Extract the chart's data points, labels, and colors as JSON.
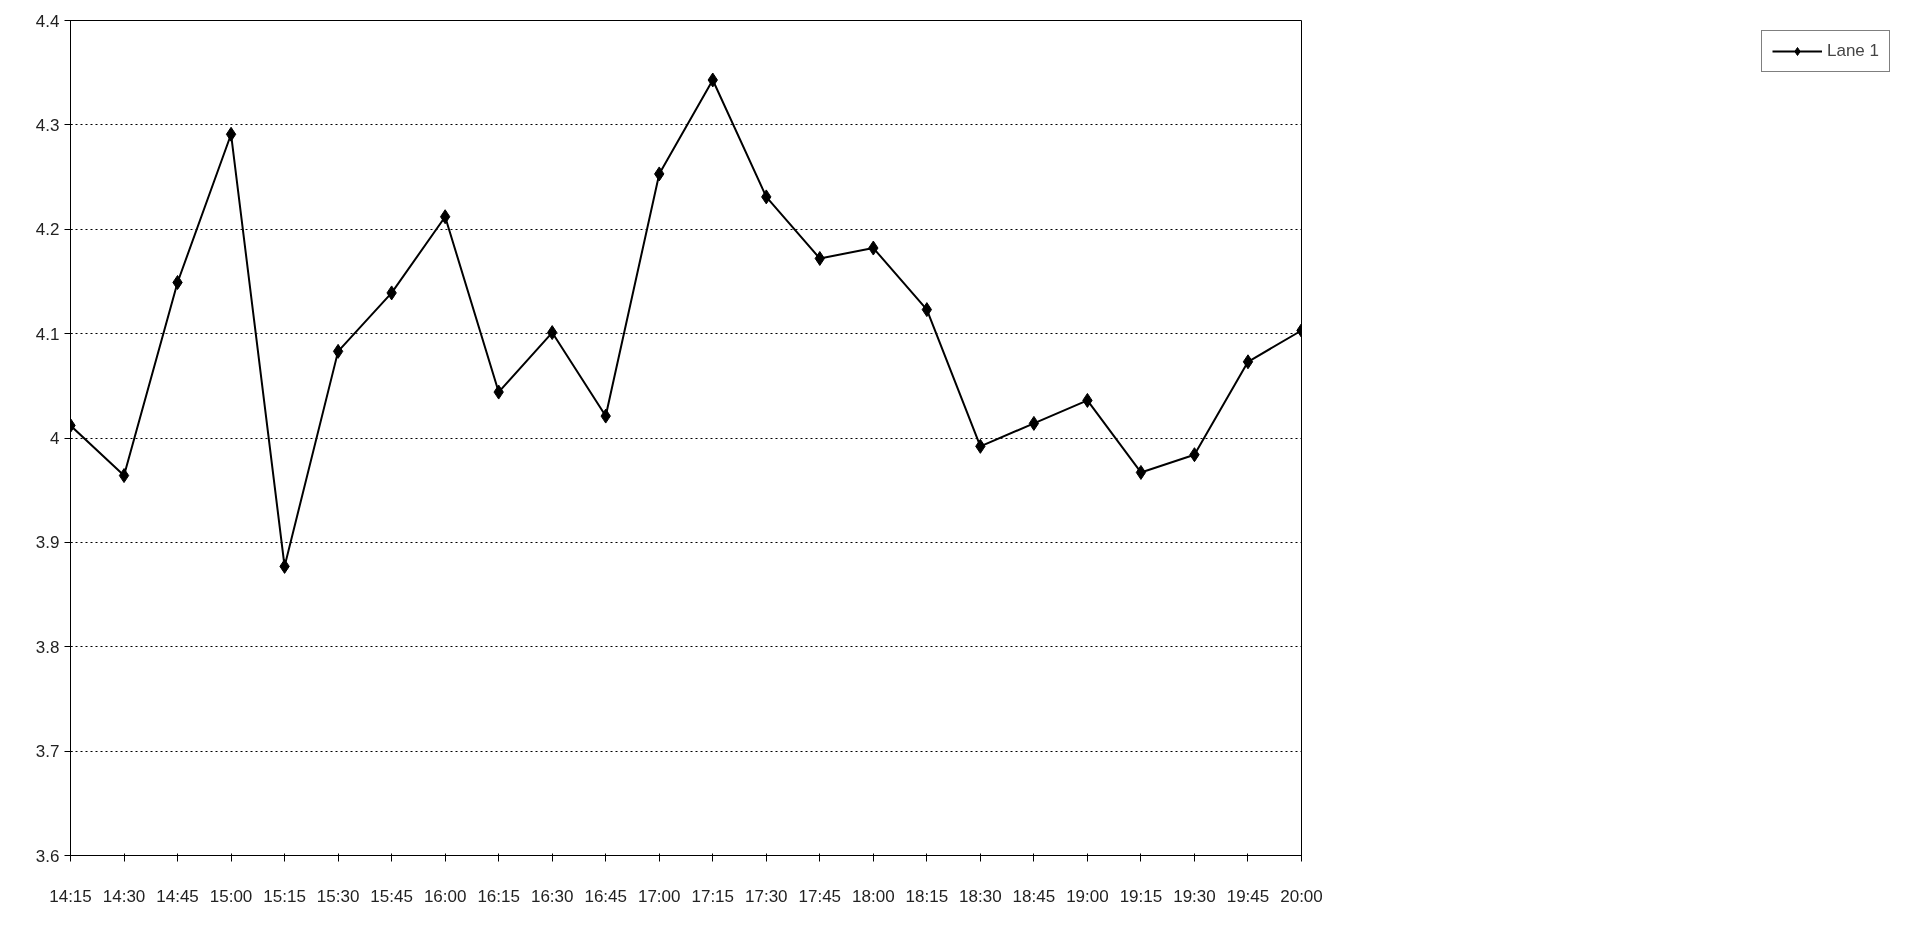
{
  "chart_data": {
    "type": "line",
    "categories": [
      "14:15",
      "14:30",
      "14:45",
      "15:00",
      "15:15",
      "15:30",
      "15:45",
      "16:00",
      "16:15",
      "16:30",
      "16:45",
      "17:00",
      "17:15",
      "17:30",
      "17:45",
      "18:00",
      "18:15",
      "18:30",
      "18:45",
      "19:00",
      "19:15",
      "19:30",
      "19:45",
      "20:00"
    ],
    "series": [
      {
        "name": "Lane 1",
        "color": "#000000",
        "values": [
          4.012,
          3.964,
          4.149,
          4.291,
          3.877,
          4.083,
          4.139,
          4.212,
          4.044,
          4.101,
          4.021,
          4.253,
          4.343,
          4.231,
          4.172,
          4.182,
          4.123,
          3.992,
          4.014,
          4.036,
          3.967,
          3.984,
          4.073,
          4.103
        ]
      }
    ],
    "ylim": [
      3.6,
      4.4
    ],
    "yticks": [
      3.6,
      3.7,
      3.8,
      3.9,
      4,
      4.1,
      4.2,
      4.3,
      4.4
    ],
    "grid": "y",
    "legend": "right",
    "marker": "diamond",
    "line_style": "solid"
  }
}
